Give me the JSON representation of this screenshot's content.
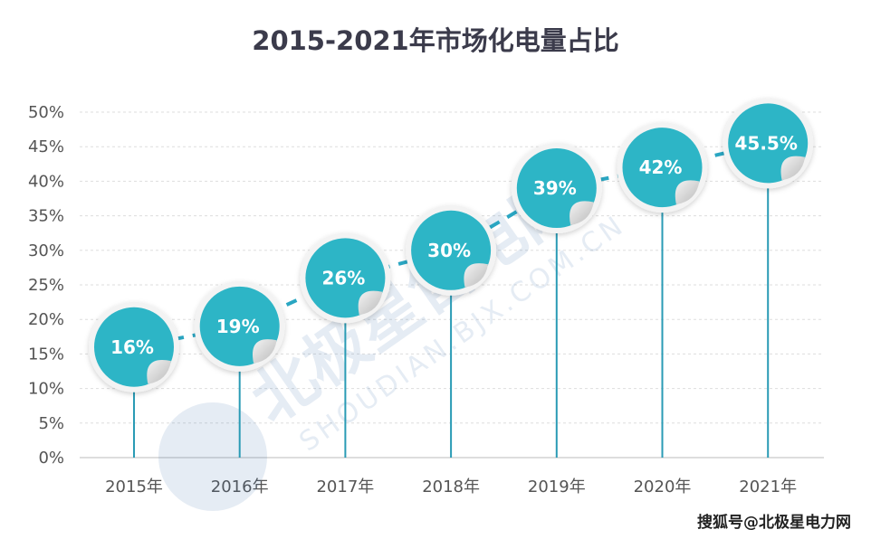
{
  "chart_data": {
    "type": "line",
    "title": "2015-2021年市场化电量占比",
    "categories": [
      "2015年",
      "2016年",
      "2017年",
      "2018年",
      "2019年",
      "2020年",
      "2021年"
    ],
    "values": [
      16,
      19,
      26,
      30,
      39,
      42,
      45.5
    ],
    "data_labels": [
      "16%",
      "19%",
      "26%",
      "30%",
      "39%",
      "42%",
      "45.5%"
    ],
    "yticks": [
      "0%",
      "5%",
      "10%",
      "15%",
      "20%",
      "25%",
      "30%",
      "35%",
      "40%",
      "45%",
      "50%"
    ],
    "ylim": [
      0,
      50
    ],
    "xlabel": "",
    "ylabel": "",
    "grid": true,
    "legend": "none",
    "colors": {
      "marker": "#2db5c6",
      "line": "#2aa6c2",
      "stem": "#2a9bb5",
      "peel": "#d9d9d9"
    }
  },
  "watermark": {
    "cn": "北极星售电网",
    "en": "SHOUDIAN.BJX.COM.CN"
  },
  "source": "搜狐号@北极星电力网"
}
